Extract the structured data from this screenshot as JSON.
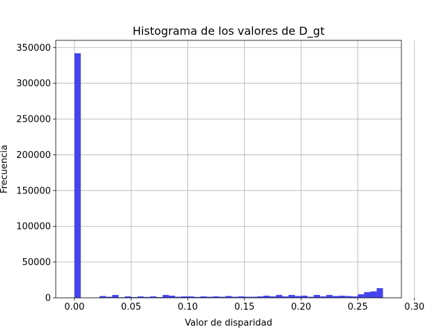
{
  "chart_data": {
    "type": "bar",
    "title": "Histograma de los valores de D_gt",
    "xlabel": "Valor de disparidad",
    "ylabel": "Frecuencia",
    "xlim": [
      -0.0165,
      0.2885
    ],
    "ylim": [
      0,
      360000
    ],
    "xticks": [
      0.0,
      0.05,
      0.1,
      0.15,
      0.2,
      0.25,
      0.3
    ],
    "xtick_labels": [
      "0.00",
      "0.05",
      "0.10",
      "0.15",
      "0.20",
      "0.25",
      "0.30"
    ],
    "yticks": [
      0,
      50000,
      100000,
      150000,
      200000,
      250000,
      300000,
      350000
    ],
    "ytick_labels": [
      "0",
      "50000",
      "100000",
      "150000",
      "200000",
      "250000",
      "300000",
      "350000"
    ],
    "grid": true,
    "bar_color": "#4444ee",
    "bin_width": 0.00556,
    "bins_start": [
      0.0,
      0.0056,
      0.0111,
      0.0167,
      0.0222,
      0.0278,
      0.0333,
      0.0389,
      0.0444,
      0.05,
      0.0556,
      0.0611,
      0.0667,
      0.0722,
      0.0778,
      0.0833,
      0.0889,
      0.0944,
      0.1,
      0.1056,
      0.1111,
      0.1167,
      0.1222,
      0.1278,
      0.1333,
      0.1389,
      0.1444,
      0.15,
      0.1556,
      0.1611,
      0.1667,
      0.1722,
      0.1778,
      0.1833,
      0.1889,
      0.1944,
      0.2,
      0.2056,
      0.2111,
      0.2167,
      0.2222,
      0.2278,
      0.2333,
      0.2389,
      0.2444,
      0.25,
      0.2556,
      0.2611,
      0.2667,
      0.2722
    ],
    "values": [
      342000,
      0,
      0,
      500,
      2500,
      1500,
      4000,
      800,
      2000,
      1000,
      2000,
      1200,
      2000,
      1000,
      4000,
      3000,
      1500,
      2000,
      2000,
      1200,
      2000,
      1500,
      2000,
      1500,
      2500,
      1500,
      2000,
      1500,
      1500,
      2000,
      3000,
      2000,
      4000,
      2000,
      4000,
      2500,
      3000,
      1500,
      4000,
      2000,
      4000,
      2500,
      3000,
      2500,
      2000,
      5000,
      8000,
      9000,
      13500,
      0
    ]
  }
}
